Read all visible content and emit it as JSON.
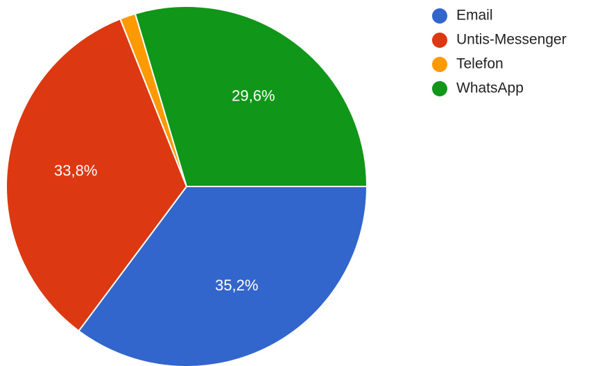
{
  "chart_data": {
    "type": "pie",
    "title": "",
    "legend_position": "right",
    "series": [
      {
        "name": "Email",
        "value": 35.2,
        "label": "35,2%",
        "color": "#3366cc"
      },
      {
        "name": "Untis-Messenger",
        "value": 33.8,
        "label": "33,8%",
        "color": "#dc3912"
      },
      {
        "name": "Telefon",
        "value": 1.4,
        "label": "",
        "color": "#ff9900"
      },
      {
        "name": "WhatsApp",
        "value": 29.6,
        "label": "29,6%",
        "color": "#109618"
      }
    ]
  }
}
